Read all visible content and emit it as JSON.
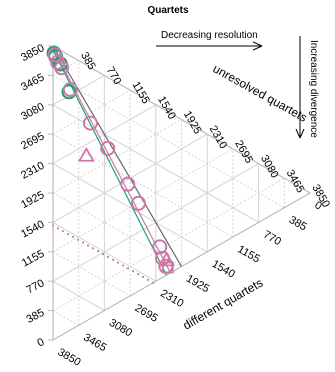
{
  "chart_data": {
    "type": "scatter",
    "subtype": "ternary",
    "title": "Quartets",
    "axes": {
      "left": {
        "label": "",
        "ticks": [
          "0",
          "385",
          "770",
          "1155",
          "1540",
          "1925",
          "2310",
          "2695",
          "3080",
          "3465",
          "3850"
        ]
      },
      "top": {
        "label": "unresolved quartets",
        "ticks": [
          "385",
          "770",
          "1155",
          "1540",
          "1925",
          "2310",
          "2695",
          "3080",
          "3465",
          "3850"
        ]
      },
      "bottom": {
        "label": "different quartets",
        "ticks": [
          "0",
          "385",
          "770",
          "1155",
          "1540",
          "1925",
          "2310",
          "2695",
          "3080",
          "3465",
          "3850"
        ]
      },
      "total": 3850
    },
    "annotations": {
      "resolution": "Decreasing resolution",
      "divergence": "Increasing divergence"
    },
    "colors": {
      "green": "#1b9e77",
      "pink": "#cc79a7",
      "grid": "#d3d3d3",
      "line": "#666666"
    },
    "series": [
      {
        "marker": "circle",
        "color": "#1b9e77",
        "points": [
          {
            "left": 3750,
            "bottom": 15
          },
          {
            "left": 3690,
            "bottom": 40
          },
          {
            "left": 3560,
            "bottom": 110
          },
          {
            "left": 3130,
            "bottom": 240
          }
        ]
      },
      {
        "marker": "circle",
        "color": "#cc79a7",
        "points": [
          {
            "left": 3720,
            "bottom": 30
          },
          {
            "left": 3600,
            "bottom": 70
          },
          {
            "left": 3500,
            "bottom": 130
          },
          {
            "left": 3150,
            "bottom": 260
          },
          {
            "left": 2560,
            "bottom": 560
          },
          {
            "left": 2100,
            "bottom": 820
          },
          {
            "left": 1480,
            "bottom": 1120
          },
          {
            "left": 1150,
            "bottom": 1280
          },
          {
            "left": 420,
            "bottom": 1600
          },
          {
            "left": 250,
            "bottom": 1640
          },
          {
            "left": 120,
            "bottom": 1690
          }
        ]
      },
      {
        "marker": "triangle",
        "color": "#cc79a7",
        "points": [
          {
            "left": 2150,
            "bottom": 500
          },
          {
            "left": 180,
            "bottom": 1700
          }
        ]
      },
      {
        "marker": "square",
        "color": "#cc79a7",
        "points": [
          {
            "left": 90,
            "bottom": 1720
          }
        ]
      }
    ],
    "lines": [
      {
        "color": "#666666",
        "from": {
          "left": 3850,
          "bottom": 0
        },
        "to": {
          "left": 0,
          "bottom": 1925
        }
      },
      {
        "color": "#1b9e77",
        "from": {
          "left": 3800,
          "bottom": 0
        },
        "to": {
          "left": 0,
          "bottom": 1700
        }
      },
      {
        "color": "#cc79a7",
        "from": {
          "left": 3780,
          "bottom": 20
        },
        "to": {
          "left": 0,
          "bottom": 1760
        }
      }
    ],
    "dotted_reference": {
      "color": "#cc79a7",
      "from": {
        "left": 1500,
        "bottom": 0
      },
      "to": {
        "left": 0,
        "bottom": 1500
      }
    }
  }
}
